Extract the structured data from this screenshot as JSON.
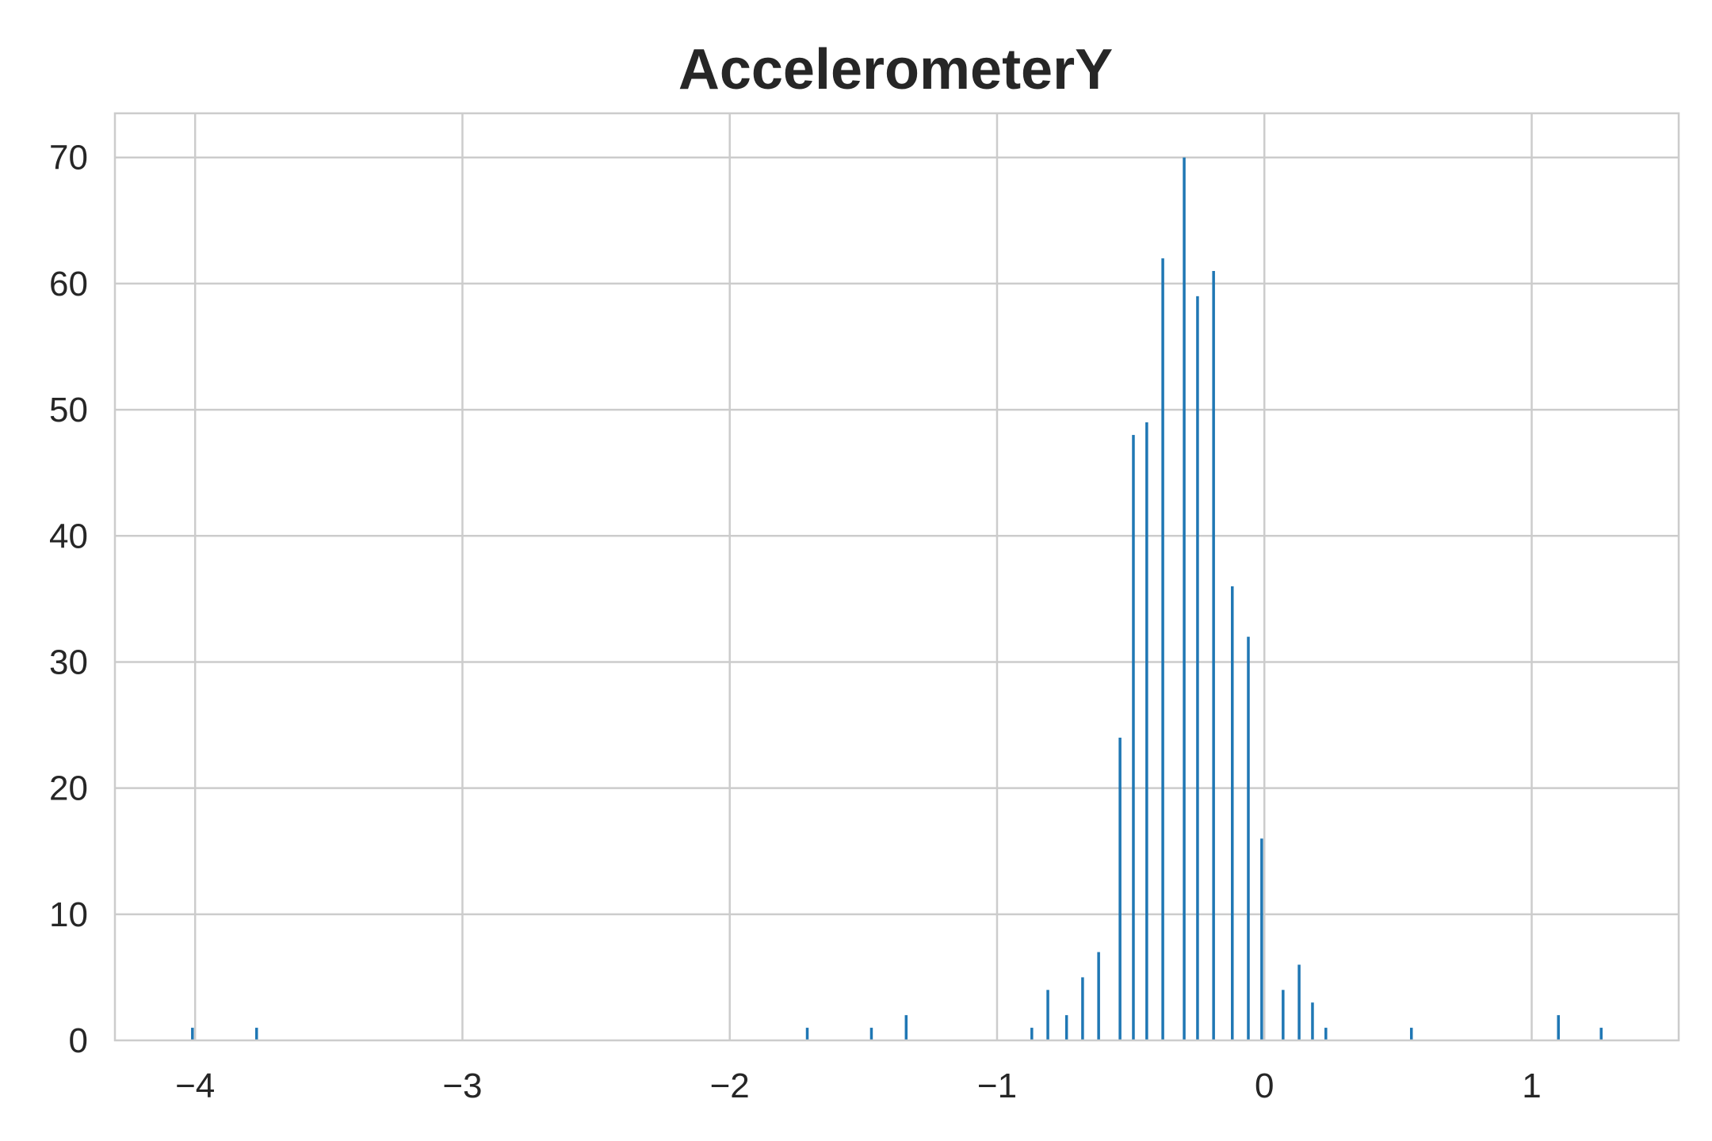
{
  "chart_data": {
    "type": "bar",
    "title": "AccelerometerY",
    "xlabel": "",
    "ylabel": "",
    "xlim": [
      -4.3,
      1.55
    ],
    "ylim": [
      0,
      73.5
    ],
    "xticks": [
      -4,
      -3,
      -2,
      -1,
      0,
      1
    ],
    "xtick_labels": [
      "−4",
      "−3",
      "−2",
      "−1",
      "0",
      "1"
    ],
    "yticks": [
      0,
      10,
      20,
      30,
      40,
      50,
      60,
      70
    ],
    "ytick_labels": [
      "0",
      "10",
      "20",
      "30",
      "40",
      "50",
      "60",
      "70"
    ],
    "grid": true,
    "bar_color": "#1f77b4",
    "x": [
      -4.01,
      -3.77,
      -1.71,
      -1.47,
      -1.34,
      -0.87,
      -0.81,
      -0.74,
      -0.68,
      -0.62,
      -0.54,
      -0.49,
      -0.44,
      -0.38,
      -0.3,
      -0.25,
      -0.19,
      -0.12,
      -0.06,
      -0.01,
      0.07,
      0.13,
      0.18,
      0.23,
      0.55,
      1.1,
      1.26
    ],
    "values": [
      1,
      1,
      1,
      1,
      2,
      1,
      4,
      2,
      5,
      7,
      24,
      48,
      49,
      62,
      70,
      59,
      61,
      36,
      32,
      16,
      4,
      6,
      3,
      1,
      1,
      2,
      1
    ]
  }
}
